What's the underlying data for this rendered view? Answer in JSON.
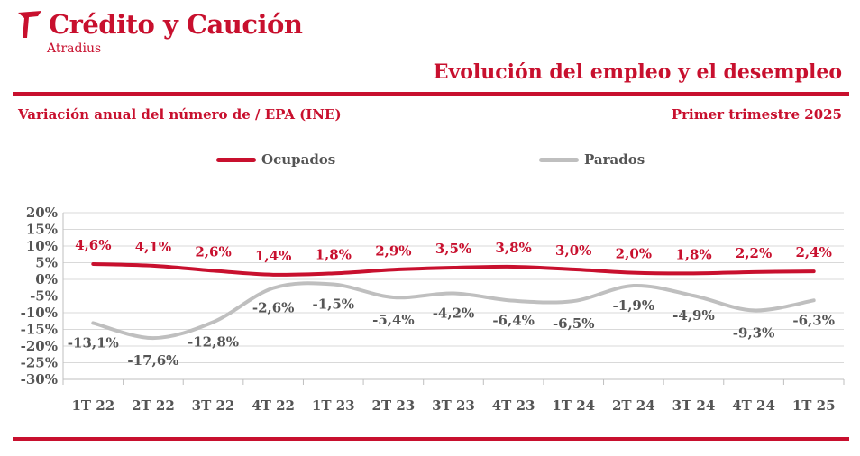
{
  "header": {
    "brand": "Crédito y Caución",
    "sub_brand": "Atradius",
    "title": "Evolución del empleo y el desempleo",
    "subtitle": "Variación anual del número de / EPA (INE)",
    "period": "Primer trimestre 2025"
  },
  "colors": {
    "accent": "#c8102e",
    "ocupados": "#c8102e",
    "parados": "#bfbfbf",
    "text": "#555555",
    "grid": "#d9d9d9"
  },
  "chart_data": {
    "type": "line",
    "categories": [
      "1T 22",
      "2T 22",
      "3T 22",
      "4T 22",
      "1T 23",
      "2T 23",
      "3T 23",
      "4T 23",
      "1T 24",
      "2T 24",
      "3T 24",
      "4T 24",
      "1T 25"
    ],
    "series": [
      {
        "name": "Ocupados",
        "values": [
          4.6,
          4.1,
          2.6,
          1.4,
          1.8,
          2.9,
          3.5,
          3.8,
          3.0,
          2.0,
          1.8,
          2.2,
          2.4
        ],
        "labels": [
          "4,6%",
          "4,1%",
          "2,6%",
          "1,4%",
          "1,8%",
          "2,9%",
          "3,5%",
          "3,8%",
          "3,0%",
          "2,0%",
          "1,8%",
          "2,2%",
          "2,4%"
        ]
      },
      {
        "name": "Parados",
        "values": [
          -13.1,
          -17.6,
          -12.8,
          -2.6,
          -1.5,
          -5.4,
          -4.2,
          -6.4,
          -6.5,
          -1.9,
          -4.9,
          -9.3,
          -6.3
        ],
        "labels": [
          "-13,1%",
          "-17,6%",
          "-12,8%",
          "-2,6%",
          "-1,5%",
          "-5,4%",
          "-4,2%",
          "-6,4%",
          "-6,5%",
          "-1,9%",
          "-4,9%",
          "-9,3%",
          "-6,3%"
        ]
      }
    ],
    "y_ticks": [
      20,
      15,
      10,
      5,
      0,
      -5,
      -10,
      -15,
      -20,
      -25,
      -30
    ],
    "y_tick_labels": [
      "20%",
      "15%",
      "10%",
      "5%",
      "0%",
      "-5%",
      "-10%",
      "-15%",
      "-20%",
      "-25%",
      "-30%"
    ],
    "ylim": [
      -30,
      20
    ],
    "grid": true,
    "legend": "top-center",
    "xlabel": "",
    "ylabel": ""
  }
}
